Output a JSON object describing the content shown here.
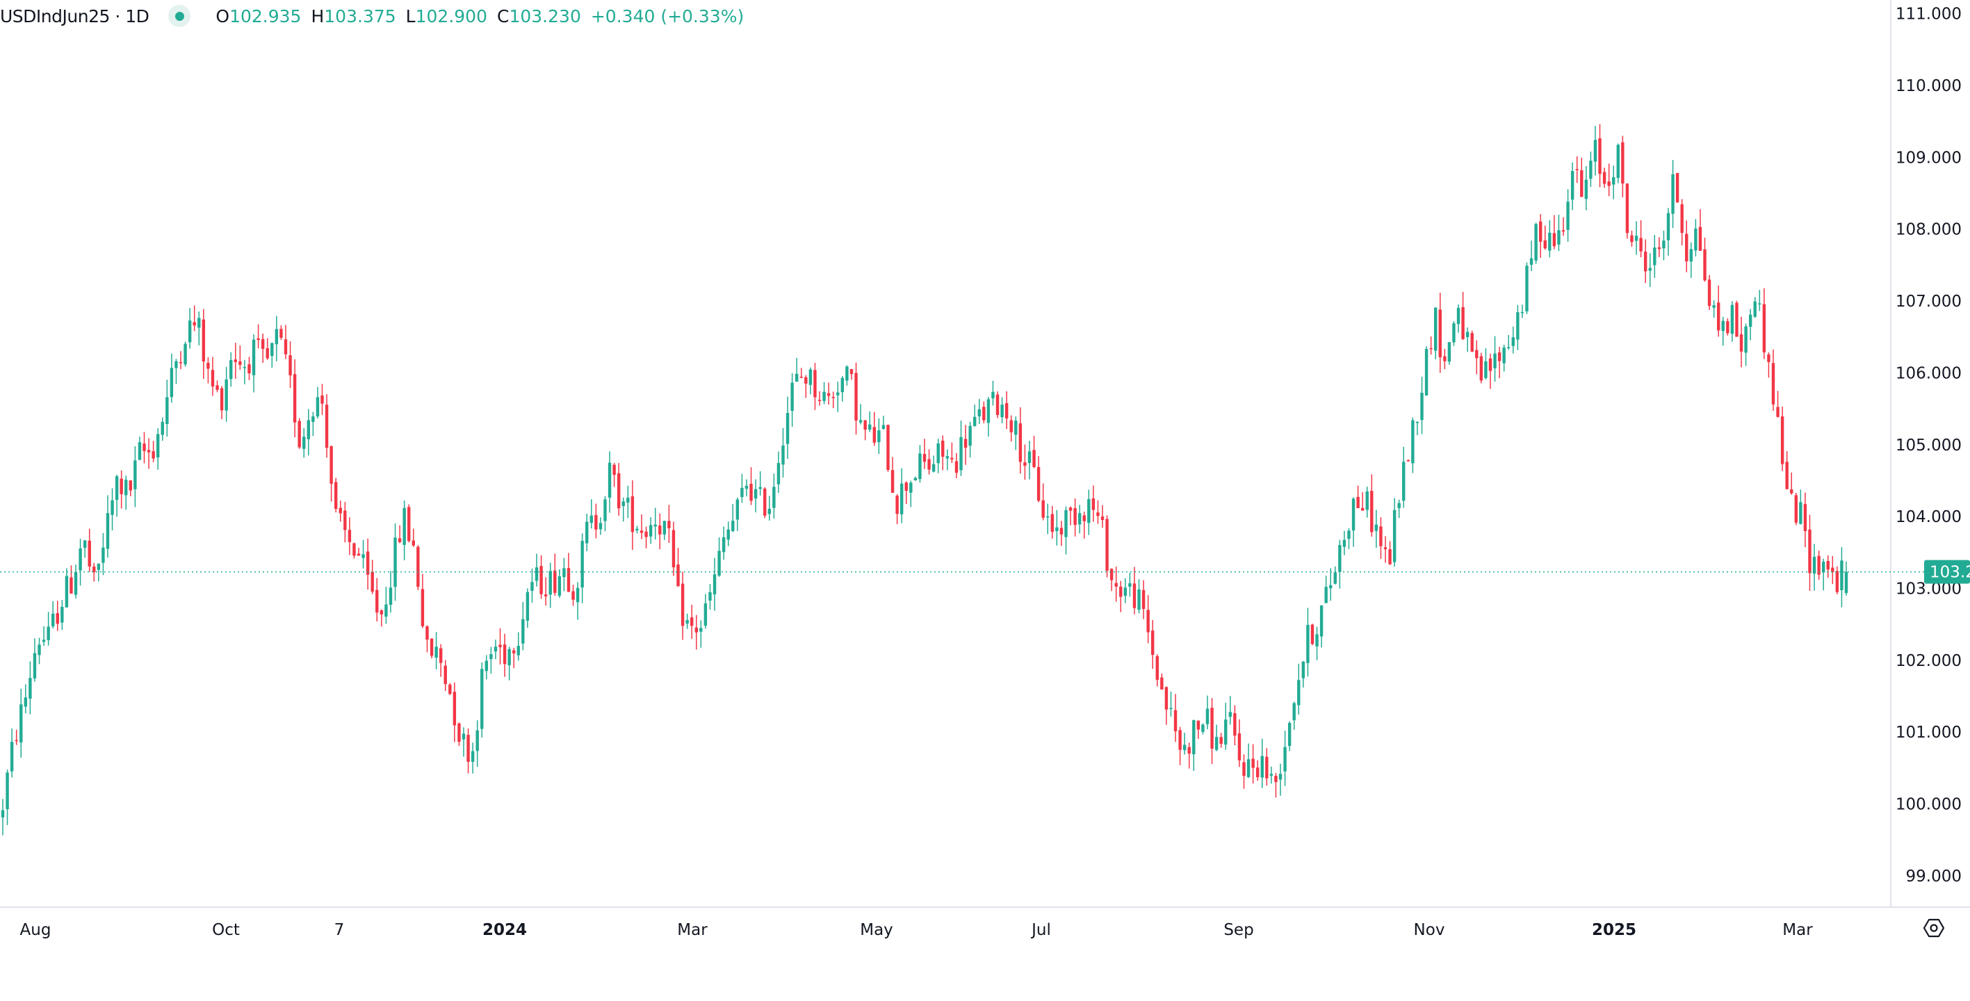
{
  "header": {
    "symbol": "USDIndJun25 · 1D",
    "open_label": "O",
    "open": "102.935",
    "high_label": "H",
    "high": "103.375",
    "low_label": "L",
    "low": "102.900",
    "close_label": "C",
    "close": "103.230",
    "change": "+0.340 (+0.33%)",
    "status_icon": "market-open-dot"
  },
  "colors": {
    "up": "#22ab94",
    "down": "#f23645",
    "text": "#131722",
    "grid_line": "#e0e3eb"
  },
  "chart_data": {
    "type": "candlestick",
    "title": "",
    "interval": "1D",
    "ylim": [
      98.8,
      111.1
    ],
    "y_ticks": [
      "111.000",
      "110.000",
      "109.000",
      "108.000",
      "107.000",
      "106.000",
      "105.000",
      "104.000",
      "103.000",
      "102.000",
      "101.000",
      "100.000",
      "99.000"
    ],
    "y_tick_values": [
      111,
      110,
      109,
      108,
      107,
      106,
      105,
      104,
      103,
      102,
      101,
      100,
      99
    ],
    "x_ticks": [
      {
        "label": "Aug",
        "bold": false
      },
      {
        "label": "Oct",
        "bold": false
      },
      {
        "label": "7",
        "bold": false
      },
      {
        "label": "2024",
        "bold": true
      },
      {
        "label": "Mar",
        "bold": false
      },
      {
        "label": "May",
        "bold": false
      },
      {
        "label": "Jul",
        "bold": false
      },
      {
        "label": "Sep",
        "bold": false
      },
      {
        "label": "Nov",
        "bold": false
      },
      {
        "label": "2025",
        "bold": true
      },
      {
        "label": "Mar",
        "bold": false
      }
    ],
    "last_price": "103.230",
    "last_price_value": 103.23,
    "last_bar": {
      "open": 102.935,
      "high": 103.375,
      "low": 102.9,
      "close": 103.23
    },
    "closes_sampled": [
      100.0,
      100.9,
      101.5,
      102.3,
      102.3,
      102.8,
      103.1,
      103.7,
      103.0,
      103.8,
      104.5,
      104.3,
      104.9,
      104.9,
      105.4,
      106.1,
      106.6,
      106.7,
      105.9,
      105.6,
      106.3,
      106.1,
      106.3,
      106.1,
      106.5,
      105.9,
      105.0,
      105.6,
      105.6,
      104.0,
      103.7,
      103.5,
      103.0,
      102.6,
      103.3,
      104.0,
      103.5,
      102.1,
      102.1,
      101.6,
      100.9,
      100.7,
      101.9,
      102.2,
      102.1,
      102.4,
      103.1,
      103.1,
      103.1,
      103.3,
      103.0,
      103.8,
      104.0,
      104.6,
      104.2,
      104.0,
      103.8,
      104.0,
      103.8,
      102.8,
      102.4,
      102.5,
      103.0,
      103.7,
      104.0,
      104.5,
      104.2,
      104.2,
      105.1,
      105.8,
      106.0,
      105.8,
      105.6,
      105.9,
      105.9,
      105.2,
      105.1,
      105.1,
      104.2,
      104.5,
      104.7,
      104.7,
      104.9,
      104.7,
      105.1,
      105.3,
      105.5,
      105.6,
      105.4,
      104.9,
      104.6,
      104.0,
      103.8,
      104.0,
      104.1,
      104.2,
      103.8,
      103.0,
      103.0,
      102.9,
      102.4,
      101.7,
      101.2,
      100.7,
      101.0,
      101.2,
      100.8,
      101.2,
      100.6,
      100.5,
      100.6,
      100.2,
      100.9,
      101.7,
      102.3,
      102.6,
      103.1,
      103.7,
      104.2,
      104.2,
      103.8,
      103.3,
      104.4,
      105.1,
      105.9,
      106.8,
      106.1,
      107.0,
      106.3,
      105.9,
      106.1,
      106.3,
      106.6,
      107.2,
      108.0,
      107.9,
      107.9,
      108.9,
      108.4,
      109.1,
      108.6,
      109.1,
      107.9,
      107.7,
      107.5,
      107.9,
      108.7,
      107.7,
      108.0,
      107.0,
      106.6,
      106.8,
      106.3,
      107.2,
      106.3,
      105.3,
      104.2,
      104.0,
      103.3,
      103.4,
      103.1,
      103.23
    ]
  },
  "settings_icon": "gear-icon"
}
